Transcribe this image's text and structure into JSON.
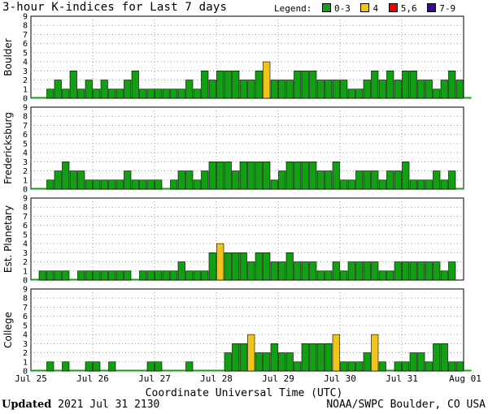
{
  "title": "3-hour K-indices for Last 7 days",
  "legend": {
    "label": "Legend:",
    "items": [
      {
        "label": "0-3",
        "color": "#11a011"
      },
      {
        "label": "4",
        "color": "#f0c419"
      },
      {
        "label": "5,6",
        "color": "#f50000"
      },
      {
        "label": "7-9",
        "color": "#3a0a8c"
      }
    ]
  },
  "footer": {
    "updated_label": "Updated",
    "updated_value": "2021 Jul 31 2130",
    "source": "NOAA/SWPC Boulder, CO USA"
  },
  "chart_data": {
    "type": "bar",
    "xlabel": "Coordinate Universal Time (UTC)",
    "ylim": [
      0,
      9
    ],
    "yticks": [
      0,
      1,
      2,
      3,
      4,
      5,
      6,
      7,
      8,
      9
    ],
    "xticks": [
      "Jul 25",
      "Jul 26",
      "Jul 27",
      "Jul 28",
      "Jul 29",
      "Jul 30",
      "Jul 31",
      "Aug 01"
    ],
    "bins_per_day": 8,
    "grid": true,
    "colors": {
      "quiet": "#11a011",
      "active": "#f0c419",
      "storm": "#f50000",
      "severe": "#3a0a8c"
    },
    "series": [
      {
        "name": "Boulder",
        "values": [
          0,
          0,
          1,
          2,
          1,
          3,
          1,
          2,
          1,
          2,
          1,
          1,
          2,
          3,
          1,
          1,
          1,
          1,
          1,
          1,
          2,
          1,
          3,
          2,
          3,
          3,
          3,
          2,
          2,
          3,
          4,
          2,
          2,
          2,
          3,
          3,
          3,
          2,
          2,
          2,
          2,
          1,
          1,
          2,
          3,
          2,
          3,
          2,
          3,
          3,
          2,
          2,
          1,
          2,
          3,
          2,
          0
        ]
      },
      {
        "name": "Fredericksburg",
        "values": [
          0,
          0,
          1,
          2,
          3,
          2,
          2,
          1,
          1,
          1,
          1,
          1,
          2,
          1,
          1,
          1,
          1,
          0,
          1,
          2,
          2,
          1,
          2,
          3,
          3,
          3,
          2,
          3,
          3,
          3,
          3,
          1,
          2,
          3,
          3,
          3,
          3,
          2,
          2,
          3,
          1,
          1,
          2,
          2,
          2,
          1,
          2,
          2,
          3,
          1,
          1,
          1,
          2,
          1,
          2,
          0
        ]
      },
      {
        "name": "Est. Planetary",
        "values": [
          0,
          1,
          1,
          1,
          1,
          0,
          1,
          1,
          1,
          1,
          1,
          1,
          1,
          0,
          1,
          1,
          1,
          1,
          1,
          2,
          1,
          1,
          1,
          3,
          4,
          3,
          3,
          3,
          2,
          3,
          3,
          2,
          2,
          3,
          2,
          2,
          2,
          1,
          1,
          2,
          1,
          2,
          2,
          2,
          2,
          1,
          1,
          2,
          2,
          2,
          2,
          2,
          2,
          1,
          2
        ]
      },
      {
        "name": "College",
        "values": [
          0,
          0,
          1,
          0,
          1,
          0,
          0,
          1,
          1,
          0,
          1,
          0,
          0,
          0,
          0,
          1,
          1,
          0,
          0,
          0,
          1,
          0,
          0,
          0,
          0,
          2,
          3,
          3,
          4,
          2,
          2,
          3,
          2,
          2,
          1,
          3,
          3,
          3,
          3,
          4,
          1,
          1,
          1,
          2,
          4,
          1,
          0,
          1,
          1,
          2,
          2,
          1,
          3,
          3,
          1,
          1,
          0
        ]
      }
    ]
  }
}
